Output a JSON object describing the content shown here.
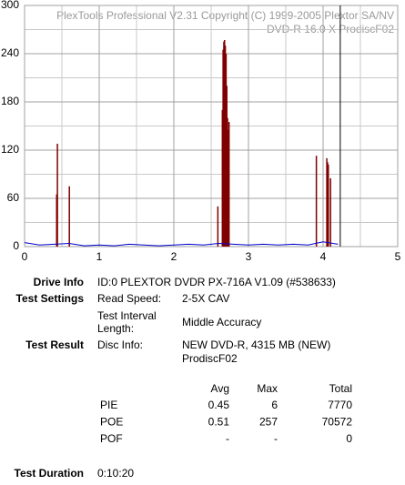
{
  "chart_data": {
    "type": "bar",
    "header_lines": [
      "PlexTools Professional V2.31 Copyright (C) 1999-2005 Plextor SA/NV",
      "DVD-R   16.0 X   ProdiscF02"
    ],
    "xlim": [
      0,
      5
    ],
    "xticks": [
      0,
      1,
      2,
      3,
      4,
      5
    ],
    "xminor": [
      0.5,
      1.5,
      2.5,
      3.5,
      4.5
    ],
    "ylim": [
      0,
      300
    ],
    "yticks": [
      0,
      60,
      120,
      180,
      240,
      300
    ],
    "yminor": [
      30,
      90,
      150,
      210,
      270
    ],
    "grid": true,
    "end_marker": 4.23,
    "series": [
      {
        "color": "#800000",
        "draw": "bars",
        "x": [
          0.43,
          0.44,
          0.6,
          2.59,
          2.65,
          2.66,
          2.67,
          2.68,
          2.69,
          2.7,
          2.71,
          2.72,
          2.73,
          2.74,
          3.91,
          4.05,
          4.06,
          4.07,
          4.1
        ],
        "values": [
          65,
          128,
          75,
          50,
          170,
          245,
          255,
          257,
          250,
          240,
          200,
          160,
          145,
          155,
          113,
          110,
          105,
          102,
          85
        ]
      },
      {
        "color": "#0000cc",
        "draw": "line",
        "x": [
          0,
          0.2,
          0.4,
          0.6,
          0.8,
          1.0,
          1.2,
          1.4,
          1.6,
          1.8,
          2.0,
          2.2,
          2.4,
          2.6,
          2.8,
          3.0,
          3.2,
          3.4,
          3.6,
          3.8,
          4.0,
          4.2
        ],
        "values": [
          5,
          2,
          3,
          4,
          1,
          2,
          1,
          3,
          2,
          1,
          2,
          3,
          2,
          4,
          3,
          2,
          3,
          2,
          3,
          2,
          6,
          3
        ]
      }
    ]
  },
  "info": {
    "drive_info_label": "Drive Info",
    "drive_info": "ID:0 PLEXTOR DVDR PX-716A V1.09 (#538633)",
    "test_settings_label": "Test Settings",
    "read_speed_label": "Read Speed:",
    "read_speed": "2-5X CAV",
    "interval_label": [
      "Test Interval",
      "Length:"
    ],
    "interval": "Middle Accuracy",
    "test_result_label": "Test Result",
    "disc_info_label": "Disc Info:",
    "disc_info": [
      "NEW DVD-R, 4315 MB (NEW)",
      "ProdiscF02"
    ],
    "table": {
      "header": [
        "Avg",
        "Max",
        "Total"
      ],
      "rows": [
        [
          "PIE",
          0.45,
          6,
          7770
        ],
        [
          "POE",
          0.51,
          257,
          70572
        ],
        [
          "POF",
          "-",
          "-",
          0
        ]
      ]
    },
    "duration_label": "Test Duration",
    "duration": "0:10:20"
  }
}
